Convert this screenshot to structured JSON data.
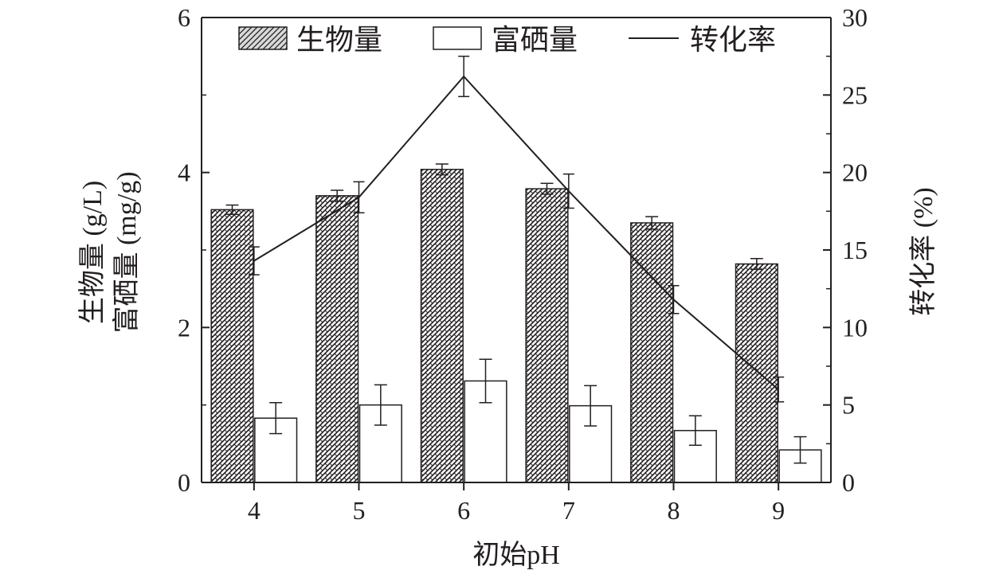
{
  "chart_data": {
    "type": "bar",
    "categories": [
      "4",
      "5",
      "6",
      "7",
      "8",
      "9"
    ],
    "xlabel": "初始pH",
    "ylabel_left": [
      "生物量 (g/L)",
      "富硒量 (mg/g)"
    ],
    "ylabel_right": "转化率 (%)",
    "ylim_left": [
      0,
      6
    ],
    "ylim_right": [
      0,
      30
    ],
    "yticks_left": [
      "0",
      "2",
      "4",
      "6"
    ],
    "yticks_right": [
      "0",
      "5",
      "10",
      "15",
      "20",
      "25",
      "30"
    ],
    "legend_position": "top",
    "legend": {
      "biomass": "生物量",
      "selenium": "富硒量",
      "conversion": "转化率"
    },
    "series": [
      {
        "name": "生物量",
        "key": "biomass",
        "kind": "bar",
        "axis": "left",
        "fill": "hatched",
        "values": [
          3.52,
          3.7,
          4.04,
          3.79,
          3.35,
          2.82
        ],
        "errors": [
          0.06,
          0.07,
          0.07,
          0.07,
          0.08,
          0.07
        ]
      },
      {
        "name": "富硒量",
        "key": "selenium",
        "kind": "bar",
        "axis": "left",
        "fill": "white",
        "values": [
          0.83,
          1.0,
          1.31,
          0.99,
          0.67,
          0.42
        ],
        "errors": [
          0.2,
          0.26,
          0.28,
          0.26,
          0.19,
          0.17
        ]
      },
      {
        "name": "转化率",
        "key": "conversion",
        "kind": "line",
        "axis": "right",
        "values": [
          14.3,
          18.4,
          26.2,
          18.8,
          11.8,
          6.0
        ],
        "errors": [
          0.9,
          1.0,
          1.3,
          1.1,
          0.9,
          0.8
        ]
      }
    ],
    "colors": {
      "axis": "#231f20",
      "bar_outline": "#231f20",
      "hatch": "#231f20",
      "white_bar": "#ffffff"
    }
  }
}
